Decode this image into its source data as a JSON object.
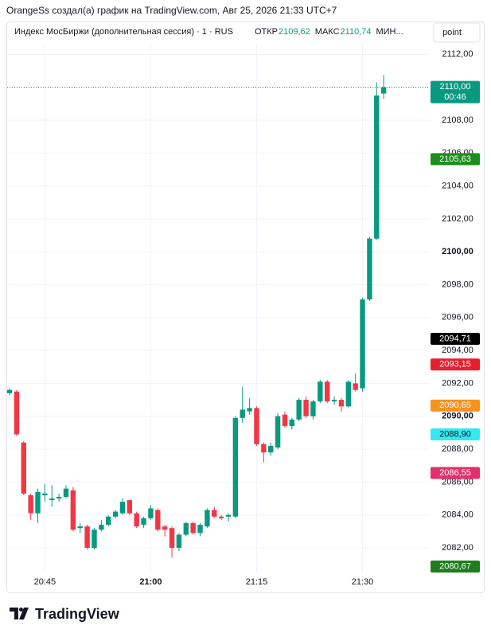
{
  "header": {
    "caption": "OrangeSs создал(а) график на TradingView.com, Авг 25, 2026 21:33 UTC+7"
  },
  "chart_data": {
    "type": "candlestick",
    "symbol": "Индекс МосБиржи (дополнительная сессия) · 1 · RUS",
    "ohlc_legend": [
      {
        "label": "ОТКР",
        "value": {
          "value": 2109.62,
          "label": "2109,62"
        }
      },
      {
        "label": "МАКС",
        "value": {
          "value": 2110.74,
          "label": "2110,74"
        }
      },
      {
        "label": "МИН..."
      }
    ],
    "scale_button": "point",
    "x": [
      "20:40",
      "20:41",
      "20:42",
      "20:43",
      "20:44",
      "20:45",
      "20:46",
      "20:47",
      "20:48",
      "20:49",
      "20:50",
      "20:51",
      "20:52",
      "20:53",
      "20:54",
      "20:55",
      "20:56",
      "20:57",
      "20:58",
      "20:59",
      "21:00",
      "21:01",
      "21:02",
      "21:03",
      "21:04",
      "21:05",
      "21:06",
      "21:07",
      "21:08",
      "21:09",
      "21:10",
      "21:11",
      "21:12",
      "21:13",
      "21:14",
      "21:15",
      "21:16",
      "21:17",
      "21:18",
      "21:19",
      "21:20",
      "21:21",
      "21:22",
      "21:23",
      "21:24",
      "21:25",
      "21:26",
      "21:27",
      "21:28",
      "21:29",
      "21:30",
      "21:31",
      "21:32",
      "21:33"
    ],
    "open": [
      2091.4,
      2091.5,
      2088.4,
      2085.2,
      2084.1,
      2085.2,
      2084.9,
      2085.0,
      2085.1,
      2085.5,
      2083.2,
      2083.3,
      2082.0,
      2083.1,
      2083.4,
      2083.9,
      2084.1,
      2084.9,
      2084.1,
      2083.4,
      2083.8,
      2084.3,
      2083.3,
      2083.2,
      2082.0,
      2082.8,
      2083.5,
      2082.9,
      2083.3,
      2084.3,
      2083.9,
      2083.9,
      2083.9,
      2089.9,
      2090.3,
      2090.5,
      2088.3,
      2087.8,
      2088.1,
      2090.1,
      2089.4,
      2089.8,
      2091.0,
      2090.0,
      2090.9,
      2092.1,
      2090.9,
      2091.0,
      2090.6,
      2092.0,
      2091.7,
      2097.1,
      2100.8,
      2109.62
    ],
    "high": [
      2091.7,
      2091.6,
      2088.5,
      2085.3,
      2085.6,
      2085.9,
      2085.8,
      2085.3,
      2085.8,
      2085.7,
      2083.5,
      2083.4,
      2083.2,
      2083.7,
      2084.0,
      2084.3,
      2085.0,
      2084.9,
      2084.2,
      2083.9,
      2084.6,
      2084.4,
      2083.4,
      2083.3,
      2082.9,
      2083.6,
      2083.6,
      2083.5,
      2084.4,
      2084.5,
      2084.0,
      2084.1,
      2090.0,
      2091.8,
      2091.1,
      2090.6,
      2088.4,
      2088.4,
      2090.2,
      2090.3,
      2089.9,
      2091.1,
      2091.2,
      2091.0,
      2092.2,
      2092.2,
      2091.2,
      2091.1,
      2092.2,
      2092.6,
      2097.2,
      2100.9,
      2110.3,
      2110.74
    ],
    "low": [
      2091.3,
      2088.8,
      2085.2,
      2083.7,
      2083.5,
      2084.8,
      2084.5,
      2084.8,
      2085.0,
      2083.0,
      2082.9,
      2081.9,
      2081.9,
      2083.0,
      2083.3,
      2083.8,
      2084.0,
      2084.0,
      2083.2,
      2083.2,
      2083.7,
      2083.0,
      2082.7,
      2081.4,
      2081.8,
      2082.7,
      2082.8,
      2082.7,
      2083.2,
      2083.8,
      2083.7,
      2083.6,
      2083.8,
      2089.6,
      2090.1,
      2088.2,
      2087.2,
      2087.6,
      2088.0,
      2089.3,
      2089.2,
      2089.7,
      2089.9,
      2089.8,
      2090.8,
      2090.8,
      2090.7,
      2090.3,
      2090.5,
      2091.5,
      2091.5,
      2097.0,
      2100.7,
      2109.3
    ],
    "close": [
      2091.6,
      2088.9,
      2085.3,
      2084.1,
      2085.4,
      2085.3,
      2085.0,
      2085.1,
      2085.6,
      2083.1,
      2083.3,
      2082.0,
      2083.1,
      2083.4,
      2083.9,
      2084.2,
      2084.8,
      2084.1,
      2083.3,
      2083.8,
      2084.4,
      2083.1,
      2083.1,
      2082.0,
      2082.8,
      2083.5,
      2082.9,
      2083.4,
      2084.3,
      2083.9,
      2083.8,
      2084.0,
      2089.9,
      2090.4,
      2090.5,
      2088.3,
      2087.8,
      2088.2,
      2090.0,
      2089.4,
      2089.8,
      2091.0,
      2090.0,
      2090.9,
      2092.1,
      2090.9,
      2091.0,
      2090.6,
      2092.1,
      2091.6,
      2097.1,
      2100.8,
      2109.5,
      2110.0
    ],
    "up_color": "#089981",
    "down_color": "#f23645",
    "ylim": [
      2080.5,
      2114
    ],
    "yticks": [
      {
        "value": 2082,
        "label": "2082,00"
      },
      {
        "value": 2084,
        "label": "2084,00"
      },
      {
        "value": 2086,
        "label": "2086,00"
      },
      {
        "value": 2088,
        "label": "2088,00"
      },
      {
        "value": 2090,
        "label": "2090,00"
      },
      {
        "value": 2092,
        "label": "2092,00"
      },
      {
        "value": 2094,
        "label": "2094,00"
      },
      {
        "value": 2096,
        "label": "2096,00"
      },
      {
        "value": 2098,
        "label": "2098,00"
      },
      {
        "value": 2100,
        "label": "2100,00"
      },
      {
        "value": 2102,
        "label": "2102,00"
      },
      {
        "value": 2104,
        "label": "2104,00"
      },
      {
        "value": 2106,
        "label": "2106,00"
      },
      {
        "value": 2108,
        "label": "2108,00"
      },
      {
        "value": 2110,
        "label": "2110,00"
      },
      {
        "value": 2112,
        "label": "2112,00"
      }
    ],
    "xticks": [
      "20:45",
      "21:00",
      "21:15",
      "21:30"
    ],
    "grid": true,
    "price_tags": [
      {
        "value": 2110.0,
        "label": "2110,00",
        "countdown": "00:46",
        "color": "#089981",
        "text_color": "#ffffff"
      },
      {
        "value": 2105.63,
        "label": "2105,63",
        "color": "#1b8f1b",
        "text_color": "#ffffff"
      },
      {
        "value": 2094.71,
        "label": "2094,71",
        "color": "#000000",
        "text_color": "#ffffff"
      },
      {
        "value": 2093.15,
        "label": "2093,15",
        "color": "#e3202b",
        "text_color": "#ffffff"
      },
      {
        "value": 2090.65,
        "label": "2090,65",
        "color": "#f7921e",
        "text_color": "#ffffff"
      },
      {
        "value": 2088.9,
        "label": "2088,90",
        "color": "#33eaf2",
        "text_color": "#131722"
      },
      {
        "value": 2086.55,
        "label": "2086,55",
        "color": "#e3306b",
        "text_color": "#ffffff"
      },
      {
        "value": 2080.67,
        "label": "2080,67",
        "color": "#1e7d1e",
        "text_color": "#ffffff"
      }
    ]
  },
  "footer": {
    "brand": "TradingView"
  }
}
